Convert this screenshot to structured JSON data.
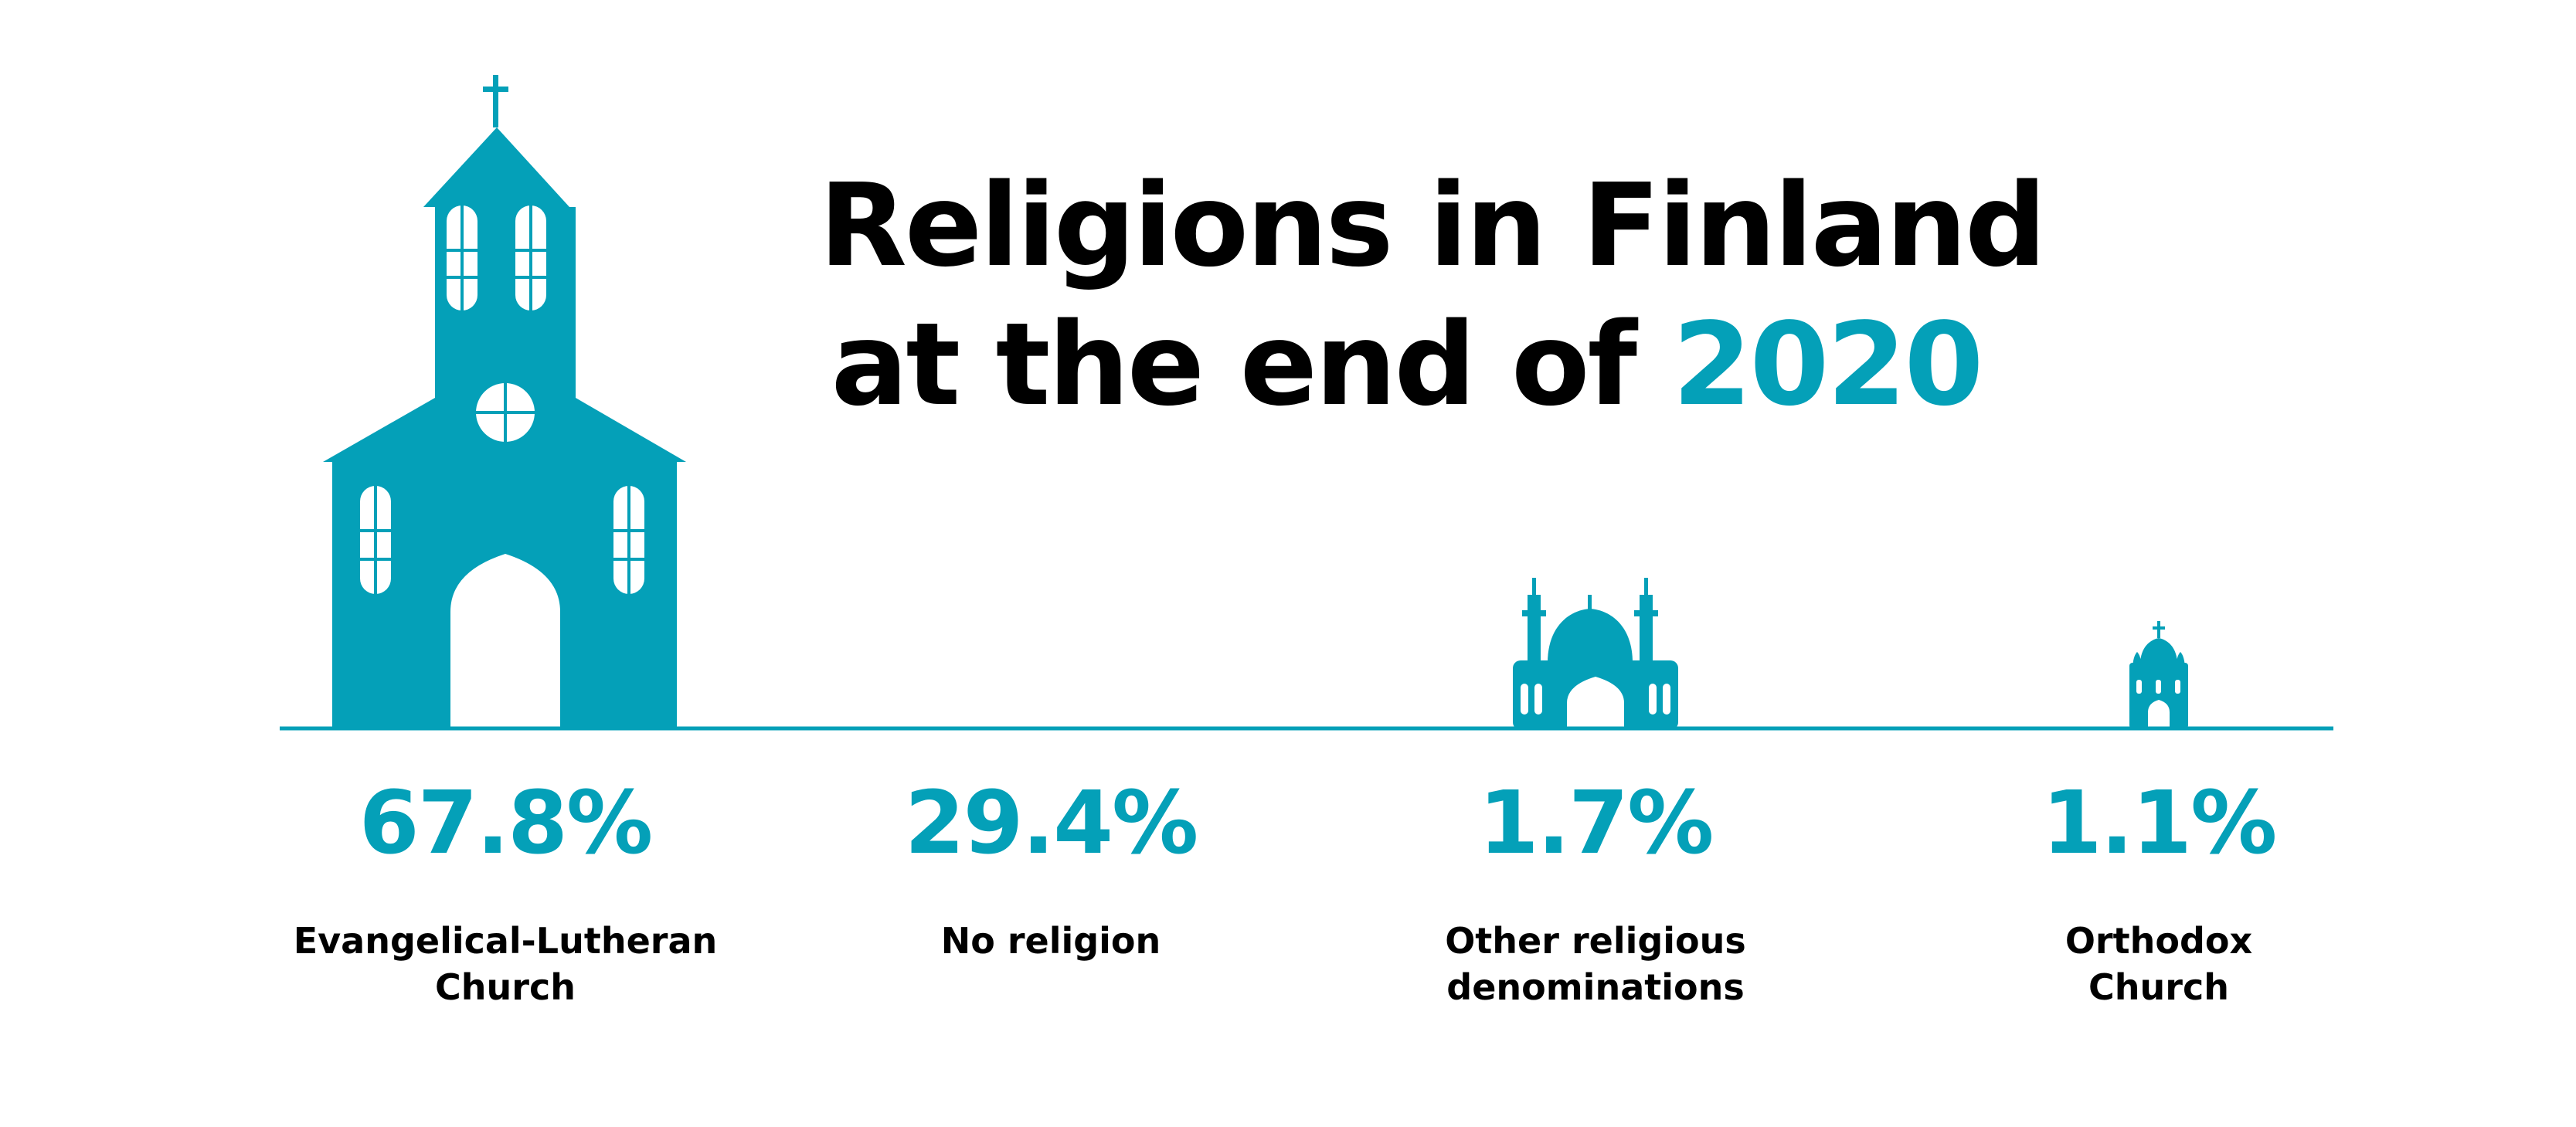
{
  "title": {
    "line1": "Religions in Finland",
    "line2_prefix": "at the end of ",
    "line2_year": "2020"
  },
  "colors": {
    "accent": "#04a0b8",
    "text": "#000000",
    "background": "#ffffff"
  },
  "chart_data": {
    "type": "bar",
    "unit": "%",
    "categories": [
      "Evangelical-Lutheran Church",
      "No religion",
      "Other religious denominations",
      "Orthodox Church"
    ],
    "values": [
      67.8,
      29.4,
      1.7,
      1.1
    ],
    "value_labels": [
      "67.8%",
      "29.4%",
      "1.7%",
      "1.1%"
    ],
    "label_lines": [
      [
        "Evangelical-Lutheran",
        "Church"
      ],
      [
        "No religion"
      ],
      [
        "Other religious",
        "denominations"
      ],
      [
        "Orthodox",
        "Church"
      ]
    ],
    "icons": [
      "church-icon",
      "",
      "mosque-icon",
      "orthodox-church-icon"
    ],
    "grid": false,
    "legend": "none"
  }
}
